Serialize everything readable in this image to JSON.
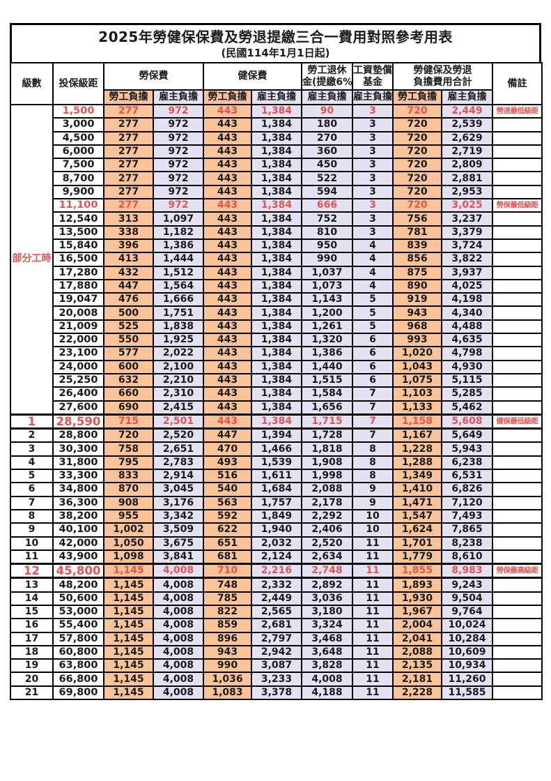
{
  "title": "2025年勞健保保費及勞退提繳三合一費用對照參考用表",
  "subtitle": "(民國114年1月1日起)",
  "header": {
    "level": "級數",
    "bracket": "投保級距",
    "labor_insurance": "勞保費",
    "health_insurance": "健保費",
    "pension_line1": "勞工退休",
    "pension_line2": "金(提繳6%)",
    "wage_fund_line1": "工資墊償",
    "wage_fund_line2": "基金",
    "total_line1": "勞健保及勞退",
    "total_line2": "負擔費用合計",
    "remark": "備註",
    "employee_share": "勞工負擔",
    "employer_share": "雇主負擔"
  },
  "group_label": "部分工時",
  "colors": {
    "employee_bg": "#fac397",
    "employer_bg": "#e4e1f3",
    "highlight_text": "#e8524e",
    "border": "#000000"
  },
  "rows": [
    {
      "lv": "",
      "bk": "1,500",
      "v": [
        "277",
        "972",
        "443",
        "1,384",
        "90",
        "3",
        "720",
        "2,449"
      ],
      "rm": "勞退最低級距",
      "red": 1
    },
    {
      "lv": "",
      "bk": "3,000",
      "v": [
        "277",
        "972",
        "443",
        "1,384",
        "180",
        "3",
        "720",
        "2,539"
      ],
      "rm": ""
    },
    {
      "lv": "",
      "bk": "4,500",
      "v": [
        "277",
        "972",
        "443",
        "1,384",
        "270",
        "3",
        "720",
        "2,629"
      ],
      "rm": ""
    },
    {
      "lv": "",
      "bk": "6,000",
      "v": [
        "277",
        "972",
        "443",
        "1,384",
        "360",
        "3",
        "720",
        "2,719"
      ],
      "rm": ""
    },
    {
      "lv": "",
      "bk": "7,500",
      "v": [
        "277",
        "972",
        "443",
        "1,384",
        "450",
        "3",
        "720",
        "2,809"
      ],
      "rm": ""
    },
    {
      "lv": "",
      "bk": "8,700",
      "v": [
        "277",
        "972",
        "443",
        "1,384",
        "522",
        "3",
        "720",
        "2,881"
      ],
      "rm": ""
    },
    {
      "lv": "",
      "bk": "9,900",
      "v": [
        "277",
        "972",
        "443",
        "1,384",
        "594",
        "3",
        "720",
        "2,953"
      ],
      "rm": ""
    },
    {
      "lv": "",
      "bk": "11,100",
      "v": [
        "277",
        "972",
        "443",
        "1,384",
        "666",
        "3",
        "720",
        "3,025"
      ],
      "rm": "勞保最低級距",
      "red": 1
    },
    {
      "lv": "",
      "bk": "12,540",
      "v": [
        "313",
        "1,097",
        "443",
        "1,384",
        "752",
        "3",
        "756",
        "3,237"
      ],
      "rm": ""
    },
    {
      "lv": "",
      "bk": "13,500",
      "v": [
        "338",
        "1,182",
        "443",
        "1,384",
        "810",
        "3",
        "781",
        "3,379"
      ],
      "rm": ""
    },
    {
      "lv": "",
      "bk": "15,840",
      "v": [
        "396",
        "1,386",
        "443",
        "1,384",
        "950",
        "4",
        "839",
        "3,724"
      ],
      "rm": ""
    },
    {
      "lv": "",
      "bk": "16,500",
      "v": [
        "413",
        "1,444",
        "443",
        "1,384",
        "990",
        "4",
        "856",
        "3,822"
      ],
      "rm": ""
    },
    {
      "lv": "",
      "bk": "17,280",
      "v": [
        "432",
        "1,512",
        "443",
        "1,384",
        "1,037",
        "4",
        "875",
        "3,937"
      ],
      "rm": ""
    },
    {
      "lv": "",
      "bk": "17,880",
      "v": [
        "447",
        "1,564",
        "443",
        "1,384",
        "1,073",
        "4",
        "890",
        "4,025"
      ],
      "rm": ""
    },
    {
      "lv": "",
      "bk": "19,047",
      "v": [
        "476",
        "1,666",
        "443",
        "1,384",
        "1,143",
        "5",
        "919",
        "4,198"
      ],
      "rm": ""
    },
    {
      "lv": "",
      "bk": "20,008",
      "v": [
        "500",
        "1,751",
        "443",
        "1,384",
        "1,200",
        "5",
        "943",
        "4,340"
      ],
      "rm": ""
    },
    {
      "lv": "",
      "bk": "21,009",
      "v": [
        "525",
        "1,838",
        "443",
        "1,384",
        "1,261",
        "5",
        "968",
        "4,488"
      ],
      "rm": ""
    },
    {
      "lv": "",
      "bk": "22,000",
      "v": [
        "550",
        "1,925",
        "443",
        "1,384",
        "1,320",
        "6",
        "993",
        "4,635"
      ],
      "rm": ""
    },
    {
      "lv": "",
      "bk": "23,100",
      "v": [
        "577",
        "2,022",
        "443",
        "1,384",
        "1,386",
        "6",
        "1,020",
        "4,798"
      ],
      "rm": ""
    },
    {
      "lv": "",
      "bk": "24,000",
      "v": [
        "600",
        "2,100",
        "443",
        "1,384",
        "1,440",
        "6",
        "1,043",
        "4,930"
      ],
      "rm": ""
    },
    {
      "lv": "",
      "bk": "25,250",
      "v": [
        "632",
        "2,210",
        "443",
        "1,384",
        "1,515",
        "6",
        "1,075",
        "5,115"
      ],
      "rm": ""
    },
    {
      "lv": "",
      "bk": "26,400",
      "v": [
        "660",
        "2,310",
        "443",
        "1,384",
        "1,584",
        "7",
        "1,103",
        "5,285"
      ],
      "rm": ""
    },
    {
      "lv": "",
      "bk": "27,600",
      "v": [
        "690",
        "2,415",
        "443",
        "1,384",
        "1,656",
        "7",
        "1,133",
        "5,462"
      ],
      "rm": ""
    },
    {
      "lv": "1",
      "bk": "28,590",
      "v": [
        "715",
        "2,501",
        "443",
        "1,384",
        "1,715",
        "7",
        "1,158",
        "5,608"
      ],
      "rm": "健保最低級距",
      "red": 1,
      "emph": 1
    },
    {
      "lv": "2",
      "bk": "28,800",
      "v": [
        "720",
        "2,520",
        "447",
        "1,394",
        "1,728",
        "7",
        "1,167",
        "5,649"
      ],
      "rm": ""
    },
    {
      "lv": "3",
      "bk": "30,300",
      "v": [
        "758",
        "2,651",
        "470",
        "1,466",
        "1,818",
        "8",
        "1,228",
        "5,943"
      ],
      "rm": ""
    },
    {
      "lv": "4",
      "bk": "31,800",
      "v": [
        "795",
        "2,783",
        "493",
        "1,539",
        "1,908",
        "8",
        "1,288",
        "6,238"
      ],
      "rm": ""
    },
    {
      "lv": "5",
      "bk": "33,300",
      "v": [
        "833",
        "2,914",
        "516",
        "1,611",
        "1,998",
        "8",
        "1,349",
        "6,531"
      ],
      "rm": ""
    },
    {
      "lv": "6",
      "bk": "34,800",
      "v": [
        "870",
        "3,045",
        "540",
        "1,684",
        "2,088",
        "9",
        "1,410",
        "6,826"
      ],
      "rm": ""
    },
    {
      "lv": "7",
      "bk": "36,300",
      "v": [
        "908",
        "3,176",
        "563",
        "1,757",
        "2,178",
        "9",
        "1,471",
        "7,120"
      ],
      "rm": ""
    },
    {
      "lv": "8",
      "bk": "38,200",
      "v": [
        "955",
        "3,342",
        "592",
        "1,849",
        "2,292",
        "10",
        "1,547",
        "7,493"
      ],
      "rm": ""
    },
    {
      "lv": "9",
      "bk": "40,100",
      "v": [
        "1,002",
        "3,509",
        "622",
        "1,940",
        "2,406",
        "10",
        "1,624",
        "7,865"
      ],
      "rm": ""
    },
    {
      "lv": "10",
      "bk": "42,000",
      "v": [
        "1,050",
        "3,675",
        "651",
        "2,032",
        "2,520",
        "11",
        "1,701",
        "8,238"
      ],
      "rm": ""
    },
    {
      "lv": "11",
      "bk": "43,900",
      "v": [
        "1,098",
        "3,841",
        "681",
        "2,124",
        "2,634",
        "11",
        "1,779",
        "8,610"
      ],
      "rm": ""
    },
    {
      "lv": "12",
      "bk": "45,800",
      "v": [
        "1,145",
        "4,008",
        "710",
        "2,216",
        "2,748",
        "11",
        "1,855",
        "8,983"
      ],
      "rm": "勞保最高級距",
      "red": 1,
      "emph": 1
    },
    {
      "lv": "13",
      "bk": "48,200",
      "v": [
        "1,145",
        "4,008",
        "748",
        "2,332",
        "2,892",
        "11",
        "1,893",
        "9,243"
      ],
      "rm": ""
    },
    {
      "lv": "14",
      "bk": "50,600",
      "v": [
        "1,145",
        "4,008",
        "785",
        "2,449",
        "3,036",
        "11",
        "1,930",
        "9,504"
      ],
      "rm": ""
    },
    {
      "lv": "15",
      "bk": "53,000",
      "v": [
        "1,145",
        "4,008",
        "822",
        "2,565",
        "3,180",
        "11",
        "1,967",
        "9,764"
      ],
      "rm": ""
    },
    {
      "lv": "16",
      "bk": "55,400",
      "v": [
        "1,145",
        "4,008",
        "859",
        "2,681",
        "3,324",
        "11",
        "2,004",
        "10,024"
      ],
      "rm": ""
    },
    {
      "lv": "17",
      "bk": "57,800",
      "v": [
        "1,145",
        "4,008",
        "896",
        "2,797",
        "3,468",
        "11",
        "2,041",
        "10,284"
      ],
      "rm": ""
    },
    {
      "lv": "18",
      "bk": "60,800",
      "v": [
        "1,145",
        "4,008",
        "943",
        "2,942",
        "3,648",
        "11",
        "2,088",
        "10,609"
      ],
      "rm": ""
    },
    {
      "lv": "19",
      "bk": "63,800",
      "v": [
        "1,145",
        "4,008",
        "990",
        "3,087",
        "3,828",
        "11",
        "2,135",
        "10,934"
      ],
      "rm": ""
    },
    {
      "lv": "20",
      "bk": "66,800",
      "v": [
        "1,145",
        "4,008",
        "1,036",
        "3,233",
        "4,008",
        "11",
        "2,181",
        "11,260"
      ],
      "rm": ""
    },
    {
      "lv": "21",
      "bk": "69,800",
      "v": [
        "1,145",
        "4,008",
        "1,083",
        "3,378",
        "4,188",
        "11",
        "2,228",
        "11,585"
      ],
      "rm": ""
    }
  ]
}
